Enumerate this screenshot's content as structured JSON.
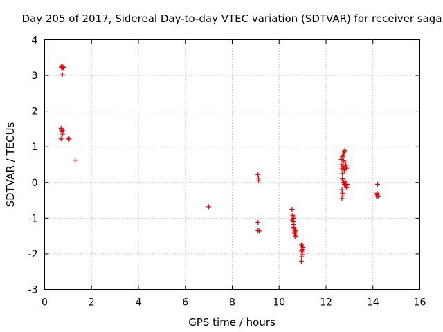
{
  "chart_data": {
    "type": "scatter",
    "title": "Day 205 of 2017, Sidereal Day-to-day VTEC variation (SDTVAR) for receiver saga",
    "xlabel": "GPS time / hours",
    "ylabel": "SDTVAR / TECUs",
    "xlim": [
      0,
      16
    ],
    "ylim": [
      -3,
      4
    ],
    "xticks": [
      0,
      2,
      4,
      6,
      8,
      10,
      12,
      14,
      16
    ],
    "yticks": [
      -3,
      -2,
      -1,
      0,
      1,
      2,
      3,
      4
    ],
    "xtick_labels": [
      "0",
      "2",
      "4",
      "6",
      "8",
      "10",
      "12",
      "14",
      "16"
    ],
    "ytick_labels": [
      "-3",
      "-2",
      "-1",
      "0",
      "1",
      "2",
      "3",
      "4"
    ],
    "grid": true,
    "marker": "plus",
    "color": "#e00000",
    "points": [
      [
        0.7,
        3.25
      ],
      [
        0.72,
        3.22
      ],
      [
        0.75,
        3.2
      ],
      [
        0.78,
        3.24
      ],
      [
        0.8,
        3.22
      ],
      [
        0.76,
        3.02
      ],
      [
        0.7,
        1.52
      ],
      [
        0.72,
        1.47
      ],
      [
        0.74,
        1.42
      ],
      [
        0.78,
        1.45
      ],
      [
        0.76,
        1.35
      ],
      [
        0.7,
        1.22
      ],
      [
        1.0,
        1.22
      ],
      [
        1.05,
        1.22
      ],
      [
        1.3,
        0.62
      ],
      [
        7.0,
        -0.68
      ],
      [
        9.1,
        0.22
      ],
      [
        9.12,
        0.12
      ],
      [
        9.13,
        0.05
      ],
      [
        9.1,
        -1.12
      ],
      [
        9.1,
        -1.35
      ],
      [
        9.15,
        -1.36
      ],
      [
        10.55,
        -0.75
      ],
      [
        10.58,
        -0.92
      ],
      [
        10.6,
        -0.95
      ],
      [
        10.62,
        -1.0
      ],
      [
        10.56,
        -1.05
      ],
      [
        10.6,
        -1.1
      ],
      [
        10.62,
        -1.18
      ],
      [
        10.6,
        -1.25
      ],
      [
        10.65,
        -1.3
      ],
      [
        10.68,
        -1.35
      ],
      [
        10.7,
        -1.38
      ],
      [
        10.66,
        -1.42
      ],
      [
        10.7,
        -1.45
      ],
      [
        10.72,
        -1.5
      ],
      [
        10.68,
        -1.52
      ],
      [
        10.95,
        -1.75
      ],
      [
        11.0,
        -1.78
      ],
      [
        11.02,
        -1.82
      ],
      [
        10.98,
        -1.88
      ],
      [
        10.96,
        -1.92
      ],
      [
        11.0,
        -1.95
      ],
      [
        10.98,
        -2.02
      ],
      [
        10.96,
        -2.08
      ],
      [
        10.95,
        -2.22
      ],
      [
        12.65,
        0.65
      ],
      [
        12.7,
        0.72
      ],
      [
        12.72,
        0.75
      ],
      [
        12.75,
        0.8
      ],
      [
        12.78,
        0.85
      ],
      [
        12.8,
        0.9
      ],
      [
        12.68,
        0.5
      ],
      [
        12.72,
        0.45
      ],
      [
        12.75,
        0.4
      ],
      [
        12.78,
        0.35
      ],
      [
        12.8,
        0.3
      ],
      [
        12.65,
        0.38
      ],
      [
        12.7,
        0.25
      ],
      [
        12.82,
        0.55
      ],
      [
        12.85,
        0.48
      ],
      [
        12.88,
        0.4
      ],
      [
        12.7,
        0.1
      ],
      [
        12.72,
        0.05
      ],
      [
        12.75,
        0.0
      ],
      [
        12.78,
        -0.05
      ],
      [
        12.8,
        -0.02
      ],
      [
        12.82,
        0.02
      ],
      [
        12.85,
        -0.1
      ],
      [
        12.88,
        -0.15
      ],
      [
        12.68,
        -0.2
      ],
      [
        12.7,
        -0.3
      ],
      [
        12.72,
        -0.38
      ],
      [
        12.68,
        -0.45
      ],
      [
        12.9,
        -0.05
      ],
      [
        12.76,
        0.6
      ],
      [
        14.2,
        -0.05
      ],
      [
        14.18,
        -0.3
      ],
      [
        14.2,
        -0.35
      ],
      [
        14.22,
        -0.4
      ],
      [
        14.15,
        -0.38
      ]
    ]
  }
}
